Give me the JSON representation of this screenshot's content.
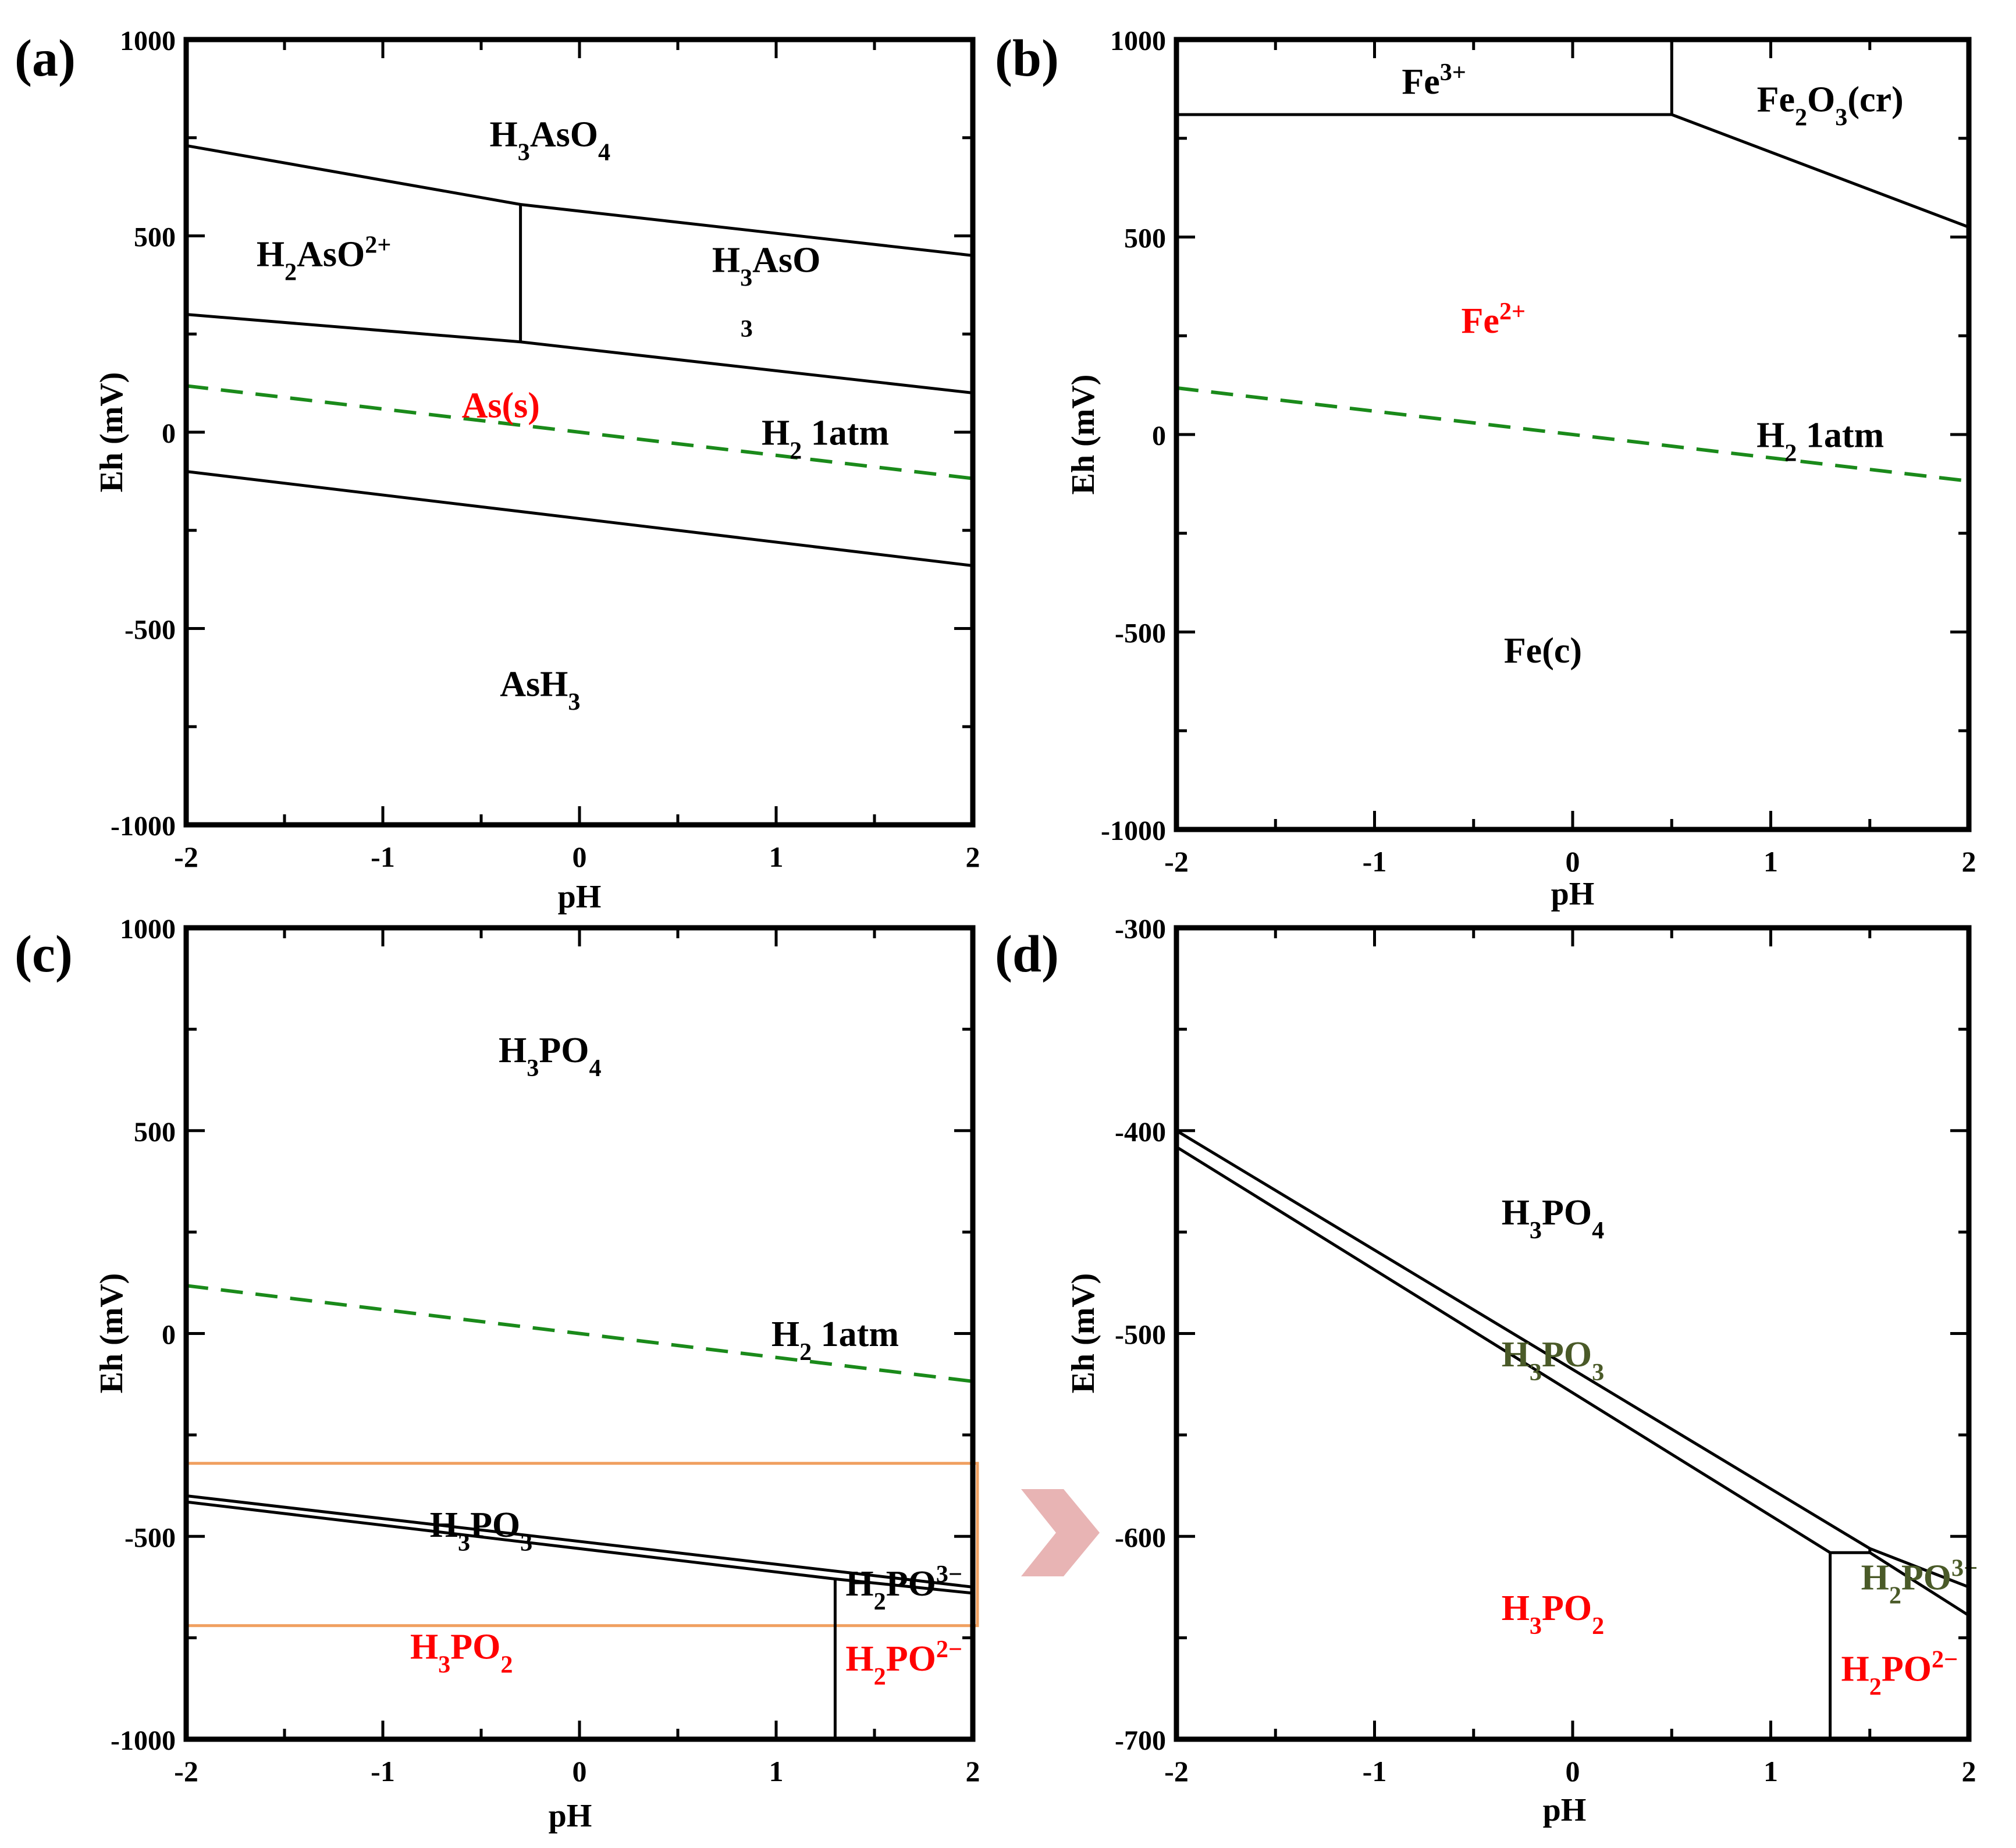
{
  "colors": {
    "axis": "#000000",
    "line": "#000000",
    "h2_line": "#1a8a1a",
    "red": "#ff0000",
    "olive": "#4a5a28",
    "highlight_box": "#f0a060",
    "arrow": "#e8b4b4",
    "label_default": "#000000"
  },
  "chart_data": [
    {
      "id": "a",
      "type": "line",
      "panel_label": "(a)",
      "xlabel": "pH",
      "ylabel": "Eh (mV)",
      "xlim": [
        -2,
        2
      ],
      "ylim": [
        -1000,
        1000
      ],
      "xticks": [
        -2,
        -1,
        0,
        1,
        2
      ],
      "yticks": [
        -1000,
        -500,
        0,
        500,
        1000
      ],
      "xtick_labels": [
        "-2",
        "-1",
        "0",
        "1",
        "2"
      ],
      "ytick_labels": [
        "-1000",
        "-500",
        "0",
        "500",
        "1000"
      ],
      "lines": [
        {
          "name": "H3AsO4 boundary",
          "style": "solid",
          "points": [
            [
              -2,
              730
            ],
            [
              -0.3,
              580
            ],
            [
              2,
              450
            ]
          ]
        },
        {
          "name": "As(s) upper boundary",
          "style": "solid",
          "points": [
            [
              -2,
              300
            ],
            [
              -0.3,
              230
            ],
            [
              2,
              100
            ]
          ]
        },
        {
          "name": "H2AsO2+ / H3AsO3 divider",
          "style": "solid",
          "points": [
            [
              -0.3,
              580
            ],
            [
              -0.3,
              230
            ]
          ]
        },
        {
          "name": "AsH3 boundary",
          "style": "solid",
          "points": [
            [
              -2,
              -100
            ],
            [
              2,
              -340
            ]
          ]
        },
        {
          "name": "H2 1atm",
          "style": "dashed",
          "points": [
            [
              -2,
              118
            ],
            [
              2,
              -118
            ]
          ]
        }
      ],
      "region_labels": [
        {
          "text": "H3AsO4",
          "pos": [
            -0.15,
            760
          ],
          "color": "black"
        },
        {
          "text": "H2AsO2+",
          "pos": [
            -1.3,
            455
          ],
          "color": "black"
        },
        {
          "text": "H3AsO",
          "pos": [
            0.95,
            440
          ],
          "color": "black"
        },
        {
          "text": "3",
          "pos": [
            0.85,
            275
          ],
          "color": "black"
        },
        {
          "text": "As(s)",
          "pos": [
            -0.4,
            70
          ],
          "color": "red"
        },
        {
          "text": "H2 1atm",
          "pos": [
            1.25,
            0
          ],
          "color": "black"
        },
        {
          "text": "AsH3",
          "pos": [
            -0.2,
            -640
          ],
          "color": "black"
        }
      ]
    },
    {
      "id": "b",
      "type": "line",
      "panel_label": "(b)",
      "xlabel": "pH",
      "ylabel": "Eh (mV)",
      "xlim": [
        -2,
        2
      ],
      "ylim": [
        -1000,
        1000
      ],
      "xticks": [
        -2,
        -1,
        0,
        1,
        2
      ],
      "yticks": [
        -1000,
        -500,
        0,
        500,
        1000
      ],
      "xtick_labels": [
        "-2",
        "-1",
        "0",
        "1",
        "2"
      ],
      "ytick_labels": [
        "-1000",
        "-500",
        "0",
        "500",
        "1000"
      ],
      "lines": [
        {
          "name": "Fe3+/Fe2+ boundary",
          "style": "solid",
          "points": [
            [
              -2,
              810
            ],
            [
              0.5,
              810
            ]
          ]
        },
        {
          "name": "Fe3+/Fe2O3 divider",
          "style": "solid",
          "points": [
            [
              0.5,
              810
            ],
            [
              0.5,
              1000
            ]
          ]
        },
        {
          "name": "Fe2O3/Fe2+ boundary",
          "style": "solid",
          "points": [
            [
              0.5,
              810
            ],
            [
              2,
              525
            ]
          ]
        },
        {
          "name": "H2 1atm",
          "style": "dashed",
          "points": [
            [
              -2,
              118
            ],
            [
              2,
              -118
            ]
          ]
        }
      ],
      "region_labels": [
        {
          "text": "Fe3+",
          "pos": [
            -0.7,
            895
          ],
          "color": "black"
        },
        {
          "text": "Fe2O3(cr)",
          "pos": [
            1.3,
            850
          ],
          "color": "black"
        },
        {
          "text": "Fe2+",
          "pos": [
            -0.4,
            290
          ],
          "color": "red"
        },
        {
          "text": "H2 1atm",
          "pos": [
            1.25,
            0
          ],
          "color": "black"
        },
        {
          "text": "Fe(c)",
          "pos": [
            -0.15,
            -545
          ],
          "color": "black"
        }
      ]
    },
    {
      "id": "c",
      "type": "line",
      "panel_label": "(c)",
      "xlabel": "pH",
      "ylabel": "Eh (mV)",
      "xlim": [
        -2,
        2
      ],
      "ylim": [
        -1000,
        1000
      ],
      "xticks": [
        -2,
        -1,
        0,
        1,
        2
      ],
      "yticks": [
        -1000,
        -500,
        0,
        500,
        1000
      ],
      "xtick_labels": [
        "-2",
        "-1",
        "0",
        "1",
        "2"
      ],
      "ytick_labels": [
        "-1000",
        "-500",
        "0",
        "500",
        "1000"
      ],
      "lines": [
        {
          "name": "H3PO4/H3PO3 boundary",
          "style": "solid",
          "points": [
            [
              -2,
              -400
            ],
            [
              2,
              -625
            ]
          ]
        },
        {
          "name": "H3PO3/H3PO2 boundary",
          "style": "solid",
          "points": [
            [
              -2,
              -415
            ],
            [
              1.3,
              -605
            ],
            [
              2,
              -640
            ]
          ]
        },
        {
          "name": "H3PO2/H2PO2- divider",
          "style": "solid",
          "points": [
            [
              1.3,
              -605
            ],
            [
              1.3,
              -1000
            ]
          ]
        },
        {
          "name": "H2 1atm",
          "style": "dashed",
          "points": [
            [
              -2,
              118
            ],
            [
              2,
              -118
            ]
          ]
        }
      ],
      "highlight_box": {
        "x": [
          -2,
          2
        ],
        "y": [
          -720,
          -320
        ]
      },
      "region_labels": [
        {
          "text": "H3PO4",
          "pos": [
            -0.15,
            700
          ],
          "color": "black"
        },
        {
          "text": "H2 1atm",
          "pos": [
            1.3,
            0
          ],
          "color": "black"
        },
        {
          "text": "H3PO3",
          "pos": [
            -0.5,
            -470
          ],
          "color": "black"
        },
        {
          "text": "H2PO3−",
          "pos": [
            1.65,
            -615
          ],
          "color": "black"
        },
        {
          "text": "H3PO2",
          "pos": [
            -0.6,
            -770
          ],
          "color": "red"
        },
        {
          "text": "H2PO2−",
          "pos": [
            1.65,
            -800
          ],
          "color": "red"
        }
      ]
    },
    {
      "id": "d",
      "type": "line",
      "panel_label": "(d)",
      "xlabel": "pH",
      "ylabel": "Eh (mV)",
      "xlim": [
        -2,
        2
      ],
      "ylim": [
        -700,
        -300
      ],
      "xticks": [
        -2,
        -1,
        0,
        1,
        2
      ],
      "yticks": [
        -700,
        -600,
        -500,
        -400,
        -300
      ],
      "xtick_labels": [
        "-2",
        "-1",
        "0",
        "1",
        "2"
      ],
      "ytick_labels": [
        "-700",
        "-600",
        "-500",
        "-400",
        "-300"
      ],
      "lines": [
        {
          "name": "H3PO4/H3PO3 boundary",
          "style": "solid",
          "points": [
            [
              -2,
              -400
            ],
            [
              1.5,
              -606
            ],
            [
              2,
              -625
            ]
          ]
        },
        {
          "name": "H3PO3/H3PO2 boundary",
          "style": "solid",
          "points": [
            [
              -2,
              -408
            ],
            [
              1.3,
              -608
            ],
            [
              1.5,
              -608
            ],
            [
              2,
              -639
            ]
          ]
        },
        {
          "name": "H3PO2/H2PO2- divider",
          "style": "solid",
          "points": [
            [
              1.3,
              -608
            ],
            [
              1.3,
              -700
            ]
          ]
        },
        {
          "name": "H3PO3/H2PO3- divider",
          "style": "solid",
          "points": [
            [
              1.5,
              -606
            ],
            [
              1.5,
              -608
            ]
          ]
        }
      ],
      "region_labels": [
        {
          "text": "H3PO4",
          "pos": [
            -0.1,
            -440
          ],
          "color": "black"
        },
        {
          "text": "H3PO3",
          "pos": [
            -0.1,
            -510
          ],
          "color": "olive"
        },
        {
          "text": "H3PO2",
          "pos": [
            -0.1,
            -635
          ],
          "color": "red"
        },
        {
          "text": "H2PO3−",
          "pos": [
            1.75,
            -620
          ],
          "color": "olive"
        },
        {
          "text": "H2PO2−",
          "pos": [
            1.65,
            -665
          ],
          "color": "red"
        }
      ]
    }
  ]
}
